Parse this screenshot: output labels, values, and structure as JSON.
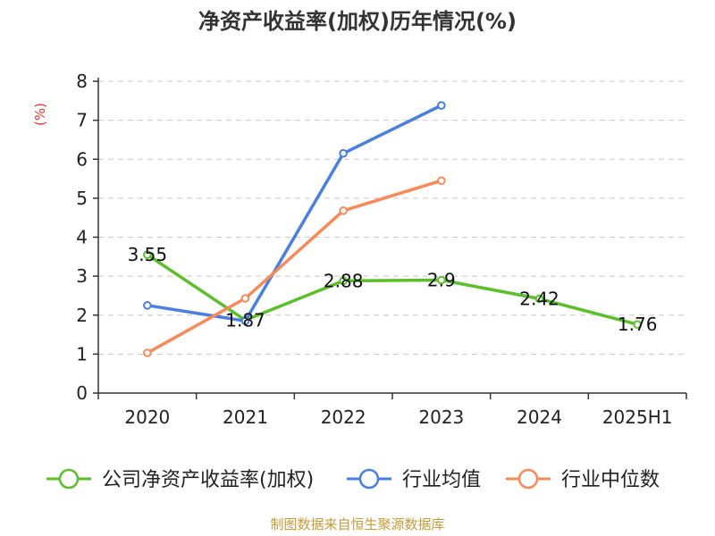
{
  "chart_data": {
    "type": "line",
    "title": "净资产收益率(加权)历年情况(%)",
    "ylabel": "(%)",
    "ylim": [
      0,
      8
    ],
    "yticks": [
      0,
      1,
      2,
      3,
      4,
      5,
      6,
      7,
      8
    ],
    "grid": true,
    "legend_position": "bottom",
    "categories": [
      "2020",
      "2021",
      "2022",
      "2023",
      "2024",
      "2025H1"
    ],
    "series": [
      {
        "name": "公司净资产收益率(加权)",
        "color": "#5bbf2a",
        "values": [
          3.55,
          1.87,
          2.88,
          2.9,
          2.42,
          1.76
        ],
        "labels": [
          "3.55",
          "1.87",
          "2.88",
          "2.9",
          "2.42",
          "1.76"
        ]
      },
      {
        "name": "行业均值",
        "color": "#4a7fe0",
        "values": [
          2.25,
          1.85,
          6.15,
          7.38,
          null,
          null
        ]
      },
      {
        "name": "行业中位数",
        "color": "#f78a58",
        "values": [
          1.03,
          2.43,
          4.68,
          5.45,
          null,
          null
        ]
      }
    ]
  },
  "source_text": "制图数据来自恒生聚源数据库"
}
